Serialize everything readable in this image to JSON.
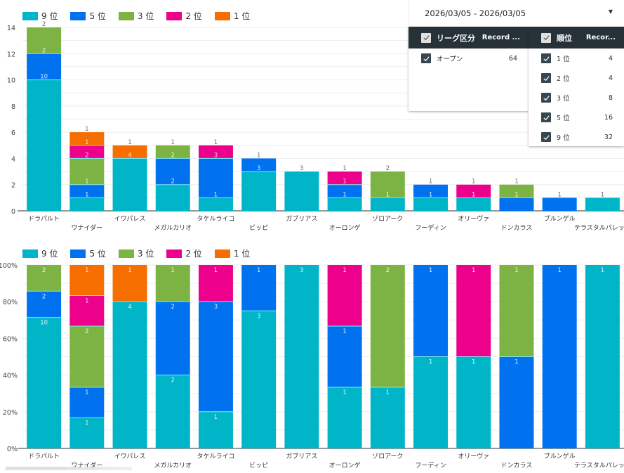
{
  "date_range": {
    "value": "2026/03/05 - 2026/03/05",
    "caret_icon": "caret-down-icon"
  },
  "filter_league": {
    "header_label": "リーグ区分",
    "header_record": "Record ...",
    "rows": [
      {
        "label": "オープン",
        "value": "64",
        "checked": true
      }
    ]
  },
  "filter_rank": {
    "header_label": "順位",
    "header_record": "Recor...",
    "rows": [
      {
        "label": "1 位",
        "value": "4",
        "checked": true
      },
      {
        "label": "2 位",
        "value": "4",
        "checked": true
      },
      {
        "label": "3 位",
        "value": "8",
        "checked": true
      },
      {
        "label": "5 位",
        "value": "16",
        "checked": true
      },
      {
        "label": "9 位",
        "value": "32",
        "checked": true
      }
    ]
  },
  "chart_data": [
    {
      "type": "bar",
      "stacked": true,
      "title": "",
      "xlabel": "",
      "ylabel": "",
      "ylim": [
        0,
        14
      ],
      "yticks": [
        "0",
        "2",
        "4",
        "6",
        "8",
        "10",
        "12",
        "14"
      ],
      "grid": true,
      "legend_position": "top-left",
      "categories": [
        "ドラパルト",
        "ワナイダー",
        "イワパレス",
        "メガルカリオ",
        "タケルライコ",
        "ビッピ",
        "ガブリアス",
        "オーロンゲ",
        "ゾロアーク",
        "フーディン",
        "オリーヴァ",
        "ドンカラス",
        "ブルンゲル",
        "テラスタルパレット"
      ],
      "series": [
        {
          "name": "9 位",
          "color": "#00b5c8",
          "values": [
            10,
            1,
            4,
            2,
            1,
            3,
            3,
            1,
            1,
            1,
            1,
            0,
            0,
            1
          ]
        },
        {
          "name": "5 位",
          "color": "#0072f0",
          "values": [
            2,
            1,
            0,
            2,
            3,
            1,
            0,
            1,
            0,
            1,
            0,
            1,
            1,
            0
          ]
        },
        {
          "name": "3 位",
          "color": "#7cb342",
          "values": [
            2,
            2,
            0,
            1,
            0,
            0,
            0,
            0,
            2,
            0,
            0,
            1,
            0,
            0
          ]
        },
        {
          "name": "2 位",
          "color": "#ec008c",
          "values": [
            0,
            1,
            0,
            0,
            1,
            0,
            0,
            1,
            0,
            0,
            1,
            0,
            0,
            0
          ]
        },
        {
          "name": "1 位",
          "color": "#f66d00",
          "values": [
            0,
            1,
            1,
            0,
            0,
            0,
            0,
            0,
            0,
            0,
            0,
            0,
            0,
            0
          ]
        }
      ]
    },
    {
      "type": "bar",
      "stacked": true,
      "normalized": true,
      "title": "",
      "xlabel": "",
      "ylabel": "",
      "ylim": [
        0,
        100
      ],
      "yticks": [
        "0%",
        "20%",
        "40%",
        "60%",
        "80%",
        "100%"
      ],
      "grid": true,
      "legend_position": "top-left",
      "categories": [
        "ドラパルト",
        "ワナイダー",
        "イワパレス",
        "メガルカリオ",
        "タケルライコ",
        "ビッピ",
        "ガブリアス",
        "オーロンゲ",
        "ゾロアーク",
        "フーディン",
        "オリーヴァ",
        "ドンカラス",
        "ブルンゲル",
        "テラスタルパレット"
      ],
      "series": [
        {
          "name": "9 位",
          "color": "#00b5c8",
          "values": [
            10,
            1,
            4,
            2,
            1,
            3,
            3,
            1,
            1,
            1,
            1,
            0,
            0,
            1
          ]
        },
        {
          "name": "5 位",
          "color": "#0072f0",
          "values": [
            2,
            1,
            0,
            2,
            3,
            1,
            0,
            1,
            0,
            1,
            0,
            1,
            1,
            0
          ]
        },
        {
          "name": "3 位",
          "color": "#7cb342",
          "values": [
            2,
            2,
            0,
            1,
            0,
            0,
            0,
            0,
            2,
            0,
            0,
            1,
            0,
            0
          ]
        },
        {
          "name": "2 位",
          "color": "#ec008c",
          "values": [
            0,
            1,
            0,
            0,
            1,
            0,
            0,
            1,
            0,
            0,
            1,
            0,
            0,
            0
          ]
        },
        {
          "name": "1 位",
          "color": "#f66d00",
          "values": [
            0,
            1,
            1,
            0,
            0,
            0,
            0,
            0,
            0,
            0,
            0,
            0,
            0,
            0
          ]
        }
      ]
    }
  ]
}
